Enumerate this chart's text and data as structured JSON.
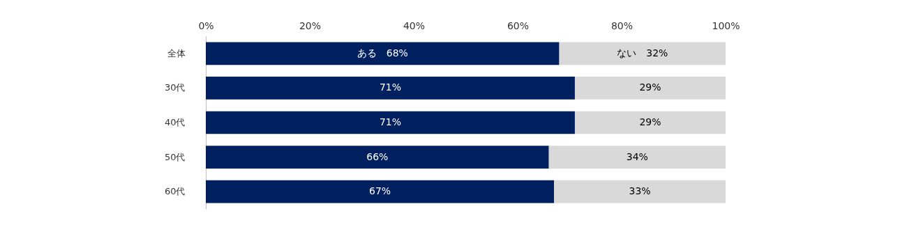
{
  "chart_data": {
    "type": "bar",
    "orientation": "horizontal",
    "stacked": true,
    "categories": [
      "全体",
      "30代",
      "40代",
      "50代",
      "60代"
    ],
    "series": [
      {
        "color": "#002060",
        "values": [
          68,
          71,
          71,
          66,
          67
        ],
        "value_labels": [
          "ある　68%",
          "71%",
          "71%",
          "66%",
          "67%"
        ]
      },
      {
        "color": "#d9d9d9",
        "values": [
          32,
          29,
          29,
          34,
          33
        ],
        "value_labels": [
          "ない　32%",
          "29%",
          "29%",
          "34%",
          "33%"
        ]
      }
    ],
    "xlim": [
      0,
      100
    ],
    "xticks": [
      {
        "value": 0,
        "label": "0%"
      },
      {
        "value": 20,
        "label": "20%"
      },
      {
        "value": 40,
        "label": "40%"
      },
      {
        "value": 60,
        "label": "60%"
      },
      {
        "value": 80,
        "label": "80%"
      },
      {
        "value": 100,
        "label": "100%"
      }
    ],
    "grid": false
  }
}
